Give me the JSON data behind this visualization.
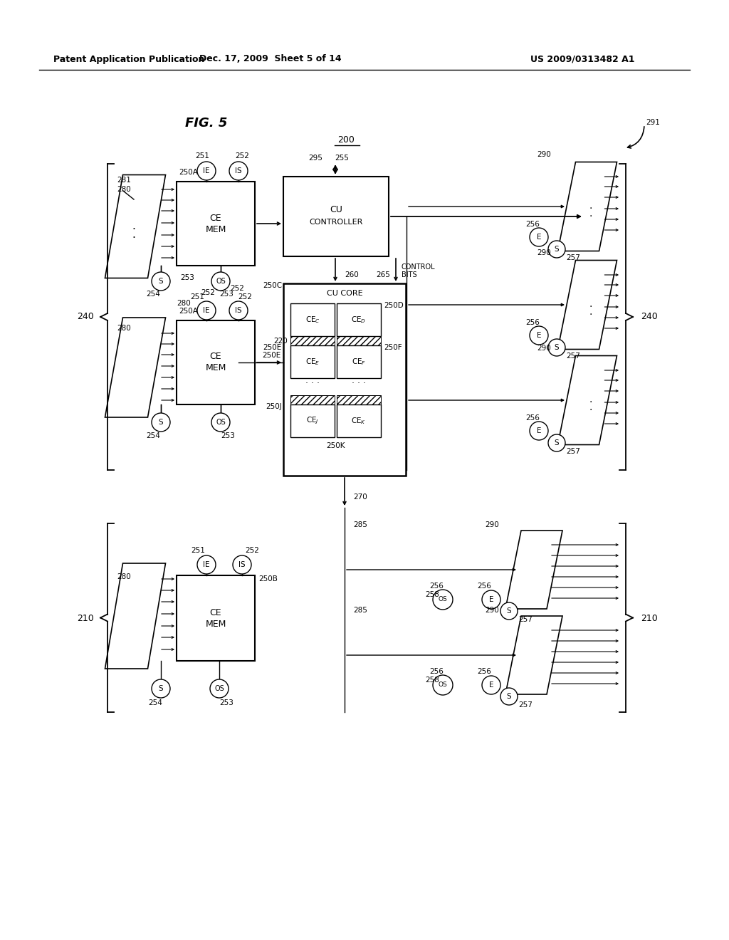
{
  "bg_color": "#ffffff",
  "header_left": "Patent Application Publication",
  "header_mid": "Dec. 17, 2009  Sheet 5 of 14",
  "header_right": "US 2009/0313482 A1",
  "fig_title": "FIG. 5",
  "label_200": "200"
}
